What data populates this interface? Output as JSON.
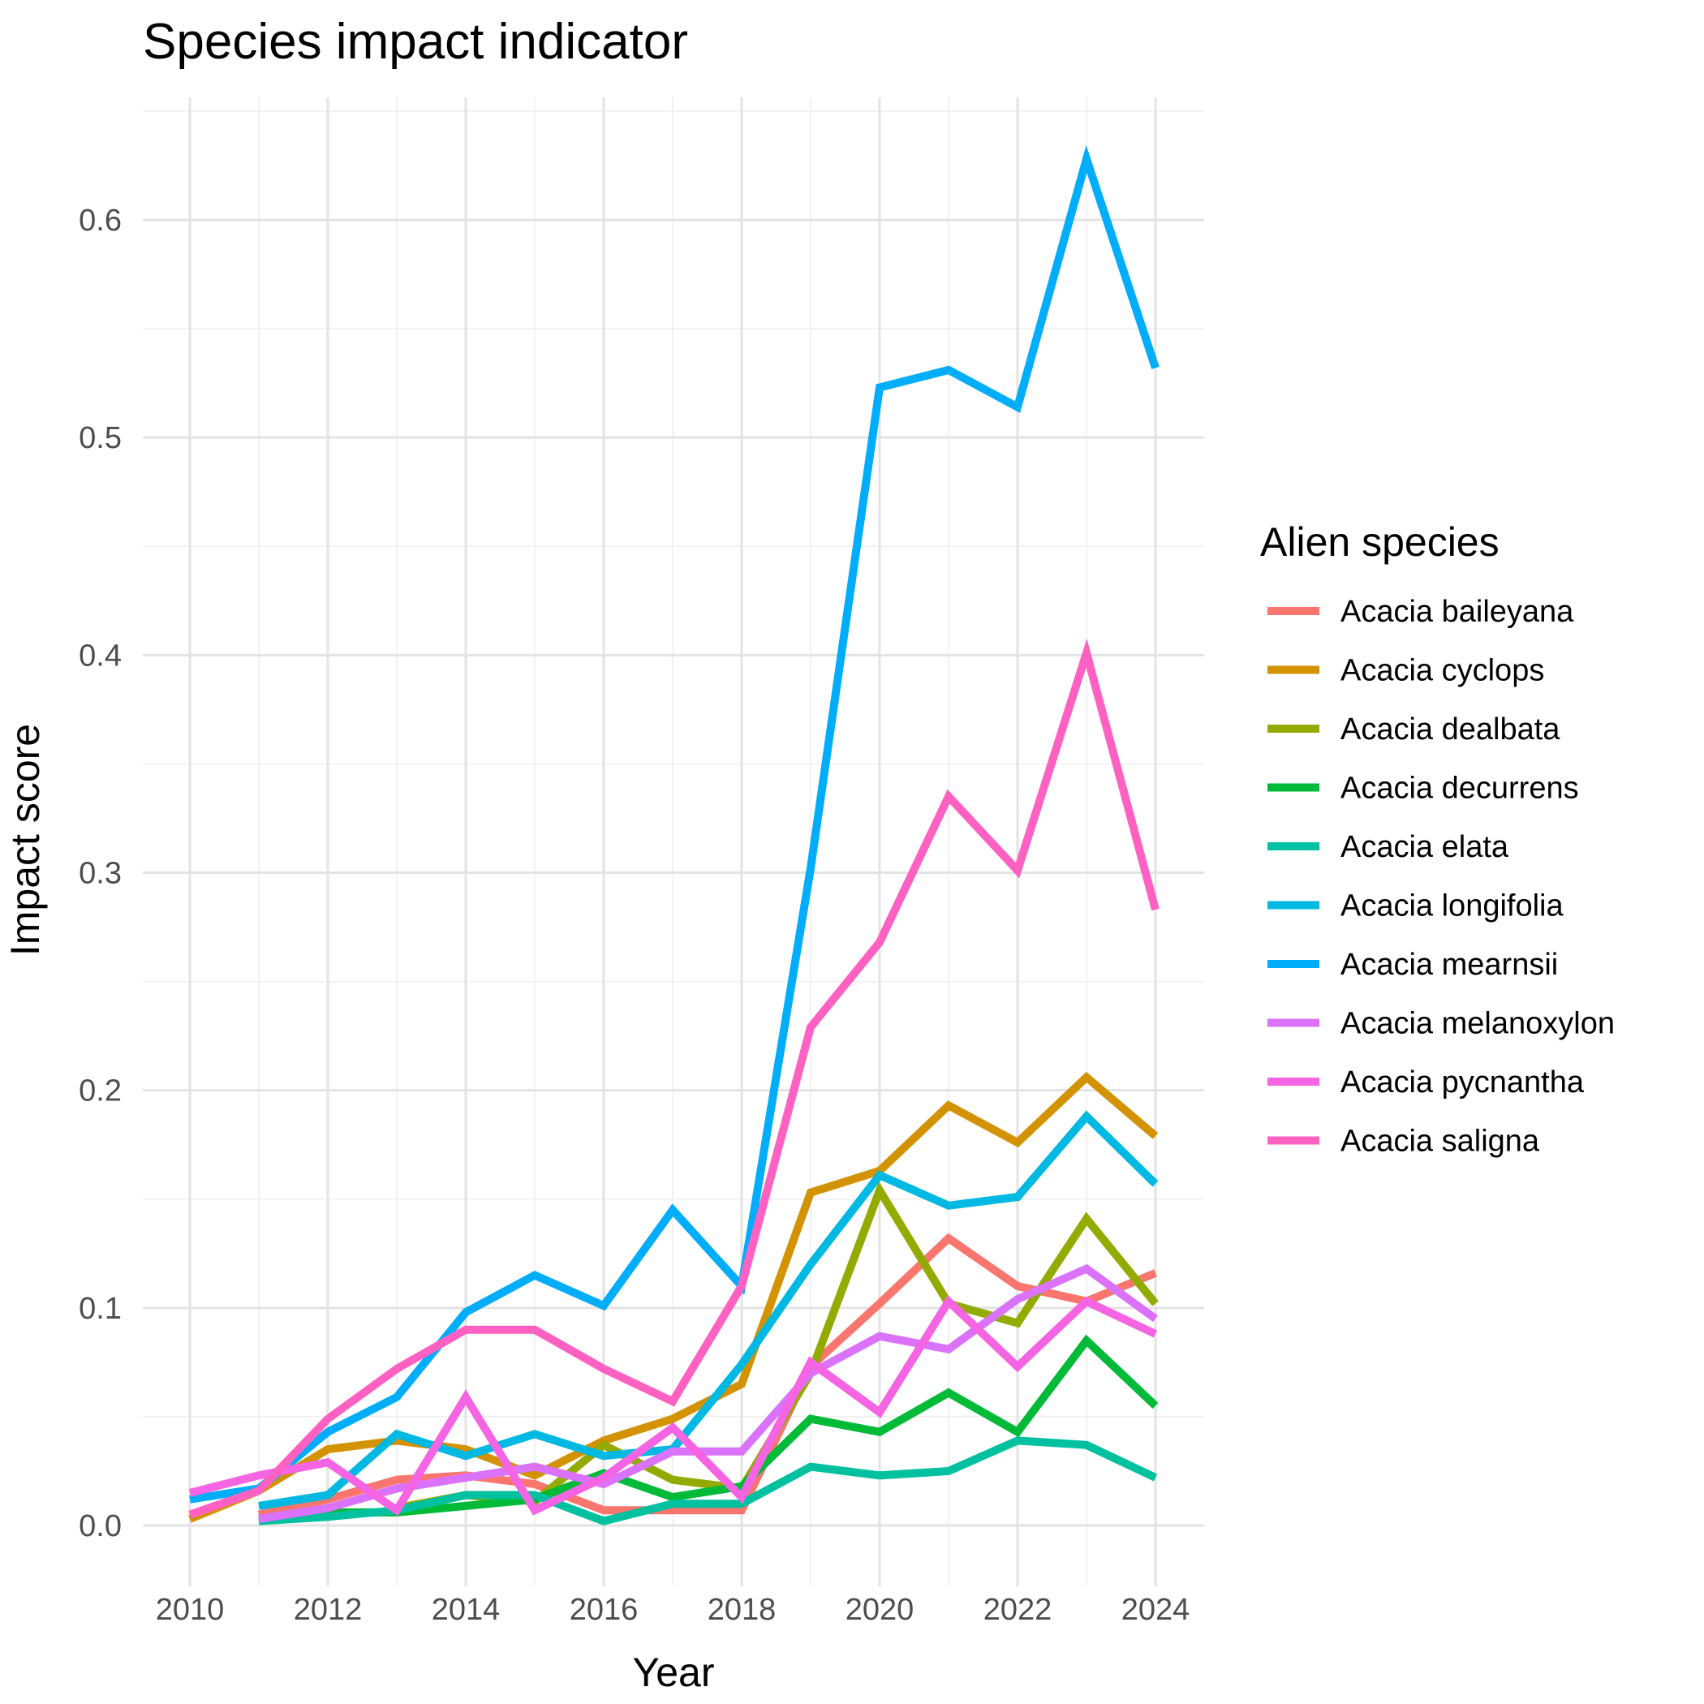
{
  "chart_data": {
    "type": "line",
    "title": "Species impact indicator",
    "xlabel": "Year",
    "ylabel": "Impact score",
    "xlim": [
      2010,
      2024
    ],
    "ylim": [
      0,
      0.6
    ],
    "x_ticks": [
      "2010",
      "2012",
      "2014",
      "2016",
      "2018",
      "2020",
      "2022",
      "2024"
    ],
    "y_ticks": [
      "0.0",
      "0.1",
      "0.2",
      "0.3",
      "0.4",
      "0.5",
      "0.6"
    ],
    "grid": true,
    "legend": {
      "title": "Alien species",
      "position": "right"
    },
    "series": [
      {
        "name": "Acacia baileyana",
        "color": "#F8766D",
        "x": [
          2011,
          2012,
          2013,
          2014,
          2015,
          2016,
          2017,
          2018,
          2019,
          2020,
          2021,
          2022,
          2023,
          2024
        ],
        "values": [
          0.005,
          0.012,
          0.021,
          0.023,
          0.019,
          0.007,
          0.007,
          0.007,
          0.073,
          0.102,
          0.132,
          0.11,
          0.103,
          0.116
        ]
      },
      {
        "name": "Acacia cyclops",
        "color": "#D39200",
        "x": [
          2010,
          2011,
          2012,
          2013,
          2014,
          2015,
          2016,
          2017,
          2018,
          2019,
          2020,
          2021,
          2022,
          2023,
          2024
        ],
        "values": [
          0.003,
          0.016,
          0.035,
          0.039,
          0.035,
          0.023,
          0.039,
          0.049,
          0.065,
          0.153,
          0.163,
          0.193,
          0.176,
          0.206,
          0.179
        ]
      },
      {
        "name": "Acacia dealbata",
        "color": "#93AA00",
        "x": [
          2013,
          2014,
          2015,
          2016,
          2017,
          2018,
          2019,
          2020,
          2021,
          2022,
          2023,
          2024
        ],
        "values": [
          0.008,
          0.014,
          0.011,
          0.037,
          0.021,
          0.017,
          0.07,
          0.154,
          0.102,
          0.093,
          0.141,
          0.102
        ]
      },
      {
        "name": "Acacia decurrens",
        "color": "#00BA38",
        "x": [
          2011,
          2012,
          2013,
          2014,
          2015,
          2016,
          2017,
          2018,
          2019,
          2020,
          2021,
          2022,
          2023,
          2024
        ],
        "values": [
          0.002,
          0.006,
          0.006,
          0.009,
          0.012,
          0.024,
          0.013,
          0.018,
          0.049,
          0.043,
          0.061,
          0.043,
          0.085,
          0.055
        ]
      },
      {
        "name": "Acacia elata",
        "color": "#00C19F",
        "x": [
          2011,
          2012,
          2013,
          2014,
          2015,
          2016,
          2017,
          2018,
          2019,
          2020,
          2021,
          2022,
          2023,
          2024
        ],
        "values": [
          0.002,
          0.004,
          0.007,
          0.014,
          0.014,
          0.002,
          0.01,
          0.01,
          0.027,
          0.023,
          0.025,
          0.039,
          0.037,
          0.022
        ]
      },
      {
        "name": "Acacia longifolia",
        "color": "#00B9E3",
        "x": [
          2011,
          2012,
          2013,
          2014,
          2015,
          2016,
          2017,
          2018,
          2019,
          2020,
          2021,
          2022,
          2023,
          2024
        ],
        "values": [
          0.009,
          0.014,
          0.042,
          0.032,
          0.042,
          0.032,
          0.035,
          0.074,
          0.12,
          0.161,
          0.147,
          0.151,
          0.188,
          0.157
        ]
      },
      {
        "name": "Acacia mearnsii",
        "color": "#00ADFA",
        "x": [
          2010,
          2011,
          2012,
          2013,
          2014,
          2015,
          2016,
          2017,
          2018,
          2019,
          2020,
          2021,
          2022,
          2023,
          2024
        ],
        "values": [
          0.012,
          0.017,
          0.043,
          0.059,
          0.098,
          0.115,
          0.101,
          0.145,
          0.11,
          0.302,
          0.523,
          0.531,
          0.514,
          0.628,
          0.532
        ]
      },
      {
        "name": "Acacia melanoxylon",
        "color": "#DB72FB",
        "x": [
          2011,
          2012,
          2013,
          2014,
          2015,
          2016,
          2017,
          2018,
          2019,
          2020,
          2021,
          2022,
          2023,
          2024
        ],
        "values": [
          0.003,
          0.008,
          0.017,
          0.022,
          0.027,
          0.019,
          0.034,
          0.034,
          0.07,
          0.087,
          0.081,
          0.104,
          0.118,
          0.095
        ]
      },
      {
        "name": "Acacia pycnantha",
        "color": "#F564E3",
        "x": [
          2010,
          2011,
          2012,
          2013,
          2014,
          2015,
          2016,
          2017,
          2018,
          2019,
          2020,
          2021,
          2022,
          2023,
          2024
        ],
        "values": [
          0.015,
          0.023,
          0.029,
          0.007,
          0.059,
          0.007,
          0.022,
          0.045,
          0.013,
          0.075,
          0.052,
          0.103,
          0.073,
          0.103,
          0.088
        ]
      },
      {
        "name": "Acacia saligna",
        "color": "#FF61C3",
        "x": [
          2010,
          2011,
          2012,
          2013,
          2014,
          2015,
          2016,
          2017,
          2018,
          2019,
          2020,
          2021,
          2022,
          2023,
          2024
        ],
        "values": [
          0.005,
          0.016,
          0.049,
          0.072,
          0.09,
          0.09,
          0.072,
          0.057,
          0.11,
          0.229,
          0.268,
          0.335,
          0.301,
          0.401,
          0.283
        ]
      }
    ]
  }
}
